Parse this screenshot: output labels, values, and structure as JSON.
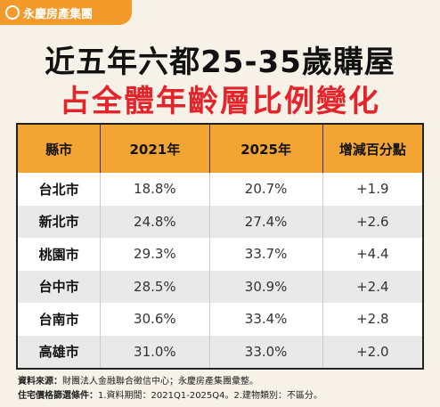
{
  "logo": "永慶房產集團",
  "title": {
    "line1": "近五年六都25-35歲購屋",
    "line2": "占全體年齡層比例變化"
  },
  "table": {
    "header": [
      "縣市",
      "2021年",
      "2025年",
      "增減百分點"
    ],
    "rows": [
      [
        "台北市",
        "18.8%",
        "20.7%",
        "+1.9"
      ],
      [
        "新北市",
        "24.8%",
        "27.4%",
        "+2.6"
      ],
      [
        "桃園市",
        "29.3%",
        "33.7%",
        "+4.4"
      ],
      [
        "台中市",
        "28.5%",
        "30.9%",
        "+2.4"
      ],
      [
        "台南市",
        "30.6%",
        "33.4%",
        "+2.8"
      ],
      [
        "高雄市",
        "31.0%",
        "33.0%",
        "+2.0"
      ]
    ]
  },
  "footer": {
    "source_label": "資料來源：",
    "source": "財團法人金融聯合徵信中心；永慶房產集團彙整。",
    "criteria_label": "住宅價格篩選條件：",
    "criteria": "1.資料期間：2021Q1-2025Q4。2.建物類別：不區分。"
  }
}
